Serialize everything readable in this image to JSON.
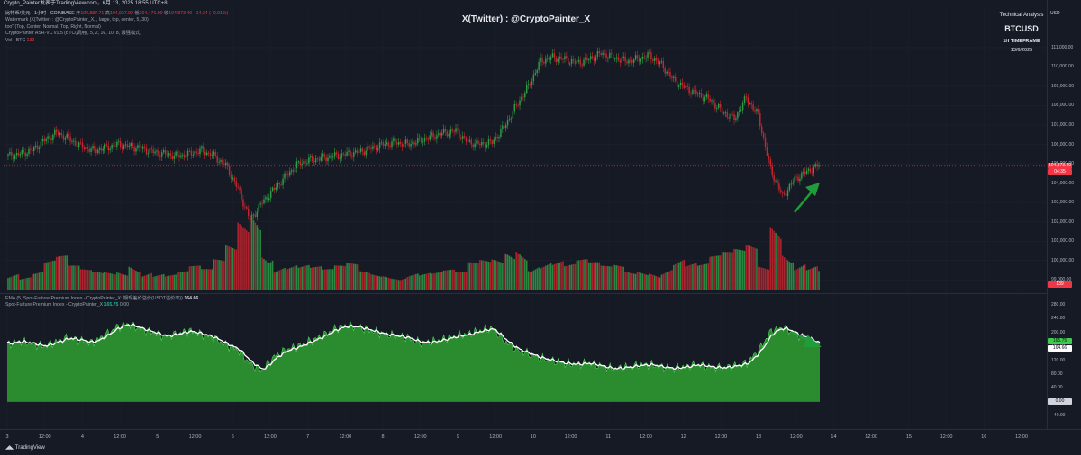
{
  "header": {
    "published": "Crypto_Painter发表于TradingView.com，6月 13, 2025 18:55 UTC+8"
  },
  "legend": {
    "symbol_line_prefix": "比特币/美元 · 1小时 · COINBASE",
    "open_label": "开",
    "open": "104,887.71",
    "high_label": "高",
    "high": "104,937.92",
    "low_label": "低",
    "low": "104,471.00",
    "close_label": "收",
    "close": "104,873.40",
    "change": "−14.34 (−0.01%)",
    "line2": "Watermark (X(Twitter) : @CryptoPainter_X, , large, top, center, 5, 30)",
    "line3": "too\" (Top, Center, Normal, Top, Right, Normal)",
    "line4": "CryptoPainter ASR-VC v1.5 (BTC(调用), 5, 2, 16, 10, 8, 最强模式)",
    "vol_label": "Vol · BTC",
    "vol_value": "139"
  },
  "watermark": "X(Twitter) : @CryptoPainter_X",
  "info": {
    "line1": "Technical Analysis",
    "symbol": "BTCUSD",
    "timeframe": "1H TIMEFRAME",
    "date": "13/6/2025"
  },
  "axis": {
    "currency": "USD",
    "price_ticks": [
      "111,000.00",
      "110,000.00",
      "109,000.00",
      "108,000.00",
      "107,000.00",
      "106,000.00",
      "105,000.00",
      "104,000.00",
      "103,000.00",
      "102,000.00",
      "101,000.00",
      "100,000.00",
      "99,000.00"
    ],
    "price_badge": "104,873.40",
    "countdown_badge": "04:35",
    "vol_badge": "139",
    "ind_ticks": [
      "280.00",
      "240.00",
      "200.00",
      "160.00",
      "120.00",
      "80.00",
      "40.00",
      "−40.00"
    ],
    "ind_badge_green": "165.75",
    "ind_badge_white": "164.66",
    "ind_badge_zero": "0.00",
    "x_labels": [
      "3",
      "12:00",
      "4",
      "12:00",
      "5",
      "12:00",
      "6",
      "12:00",
      "7",
      "12:00",
      "8",
      "12:00",
      "9",
      "12:00",
      "10",
      "12:00",
      "11",
      "12:00",
      "12",
      "12:00",
      "13",
      "12:00",
      "14",
      "12:00",
      "15",
      "12:00",
      "16",
      "12:00"
    ]
  },
  "indicator": {
    "ema_label": "EMA (5, Spot-Furture Premium Index - CryptoPainter_X: 期现差价溢价(USDT溢价率))",
    "ema_value": "164.66",
    "spfi_label": "Spot-Furture Premium Index - CryptoPainter_X",
    "spfi_value": "165.75",
    "spfi_value2": "0.00"
  },
  "colors": {
    "up": "#089981",
    "down": "#f23645",
    "candle_up": "#2e9e45",
    "candle_down": "#c7262f",
    "area": "#2a8c2e",
    "arrow": "#1f9d3a"
  },
  "footer": {
    "brand": "TradingView"
  },
  "chart_data": [
    {
      "type": "candlestick",
      "title": "BTCUSD",
      "ylim": [
        98500,
        111600
      ],
      "x_range": [
        "Jun 3",
        "Jun 16 12:00"
      ],
      "last_price": 104873.4,
      "close_series": [
        105400,
        105500,
        105700,
        106200,
        106600,
        106300,
        105900,
        105700,
        105800,
        106000,
        105900,
        105800,
        105600,
        105500,
        105400,
        105500,
        105700,
        105400,
        104900,
        103700,
        102100,
        103000,
        103700,
        104400,
        105000,
        105200,
        105300,
        105400,
        105500,
        105600,
        105800,
        106000,
        106100,
        106000,
        106200,
        106400,
        106600,
        106700,
        106100,
        106000,
        106100,
        106900,
        108000,
        109000,
        110300,
        110500,
        110400,
        110200,
        110400,
        110700,
        110500,
        110300,
        110400,
        110600,
        110100,
        109300,
        108900,
        108600,
        108300,
        107700,
        107300,
        108400,
        107500,
        104700,
        103300,
        104200,
        104600,
        104900
      ],
      "volume_series": [
        40,
        25,
        30,
        45,
        50,
        35,
        30,
        28,
        30,
        35,
        60,
        40,
        30,
        25,
        28,
        35,
        30,
        45,
        70,
        120,
        160,
        90,
        50,
        45,
        40,
        35,
        30,
        35,
        40,
        30,
        28,
        30,
        32,
        35,
        30,
        28,
        30,
        26,
        40,
        45,
        50,
        70,
        90,
        60,
        55,
        50,
        40,
        45,
        40,
        35,
        38,
        30,
        35,
        40,
        50,
        60,
        45,
        40,
        50,
        55,
        60,
        70,
        40,
        130,
        90,
        60,
        45,
        35
      ]
    },
    {
      "type": "area",
      "title": "Spot-Furture Premium Index - CryptoPainter_X",
      "ylim": [
        -60,
        290
      ],
      "values": [
        165,
        175,
        168,
        160,
        172,
        185,
        178,
        170,
        190,
        215,
        225,
        210,
        200,
        188,
        196,
        205,
        195,
        185,
        165,
        150,
        110,
        90,
        130,
        150,
        160,
        175,
        190,
        210,
        220,
        215,
        205,
        195,
        190,
        185,
        170,
        172,
        180,
        190,
        195,
        205,
        212,
        175,
        150,
        138,
        125,
        118,
        110,
        108,
        112,
        102,
        95,
        100,
        105,
        108,
        100,
        96,
        102,
        108,
        100,
        98,
        104,
        112,
        150,
        205,
        215,
        195,
        182,
        166
      ],
      "ema_last": 164.66,
      "last": 165.75
    }
  ]
}
